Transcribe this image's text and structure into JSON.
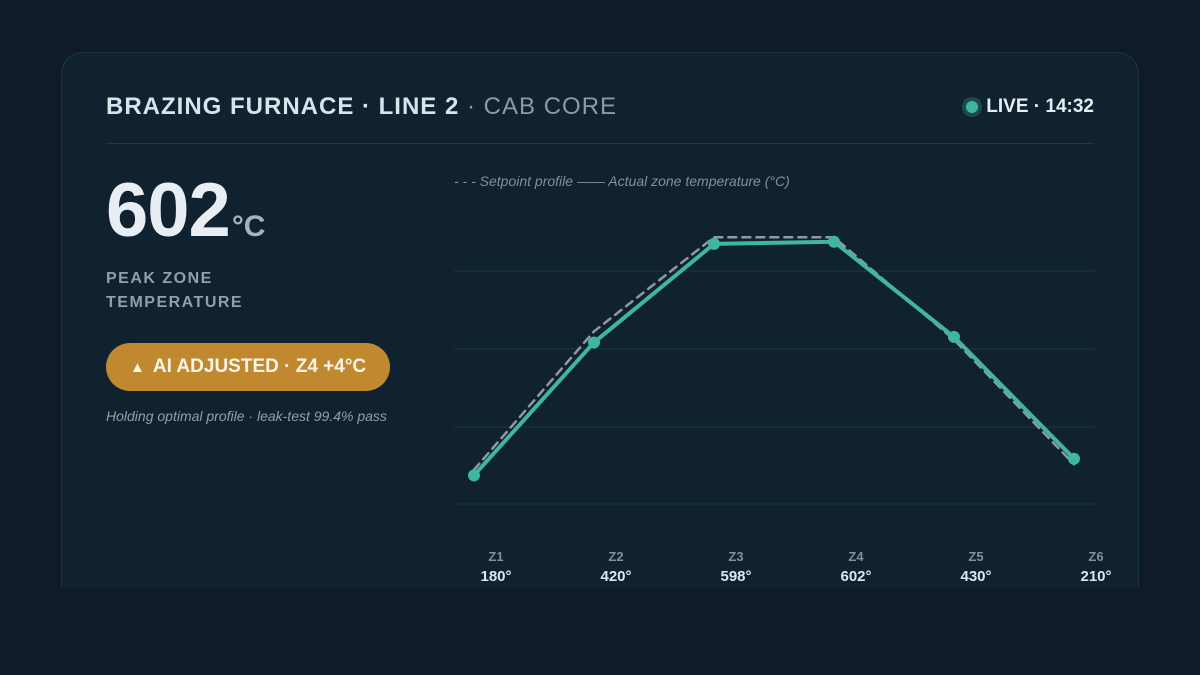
{
  "header": {
    "title_main": "BRAZING FURNACE · LINE 2",
    "title_sub": " · CAB CORE",
    "live_label": "LIVE · 14:32"
  },
  "kpi": {
    "value": "602",
    "unit": "°C",
    "label": "PEAK ZONE TEMPERATURE"
  },
  "badge": {
    "icon": "flame-icon",
    "text": "AI ADJUSTED · Z4 +4°C"
  },
  "note": "Holding optimal profile · leak-test 99.4% pass",
  "legend_text": "- - - Setpoint profile —— Actual zone temperature (°C)",
  "colors": {
    "actual": "#3fb6a0",
    "setpoint": "#8d9aa3",
    "badge": "#c1892f",
    "live": "#3fb6a0"
  },
  "chart_data": {
    "type": "line",
    "categories": [
      "Z1",
      "Z2",
      "Z3",
      "Z4",
      "Z5",
      "Z6"
    ],
    "tick_values": [
      "180°",
      "420°",
      "598°",
      "602°",
      "430°",
      "210°"
    ],
    "series": [
      {
        "name": "Setpoint profile",
        "style": "dashed",
        "values": [
          190,
          440,
          610,
          610,
          425,
          200
        ]
      },
      {
        "name": "Actual zone temperature (°C)",
        "style": "solid",
        "values": [
          180,
          420,
          598,
          602,
          430,
          210
        ]
      }
    ],
    "ylim": [
      130,
      690
    ],
    "grid": true
  }
}
